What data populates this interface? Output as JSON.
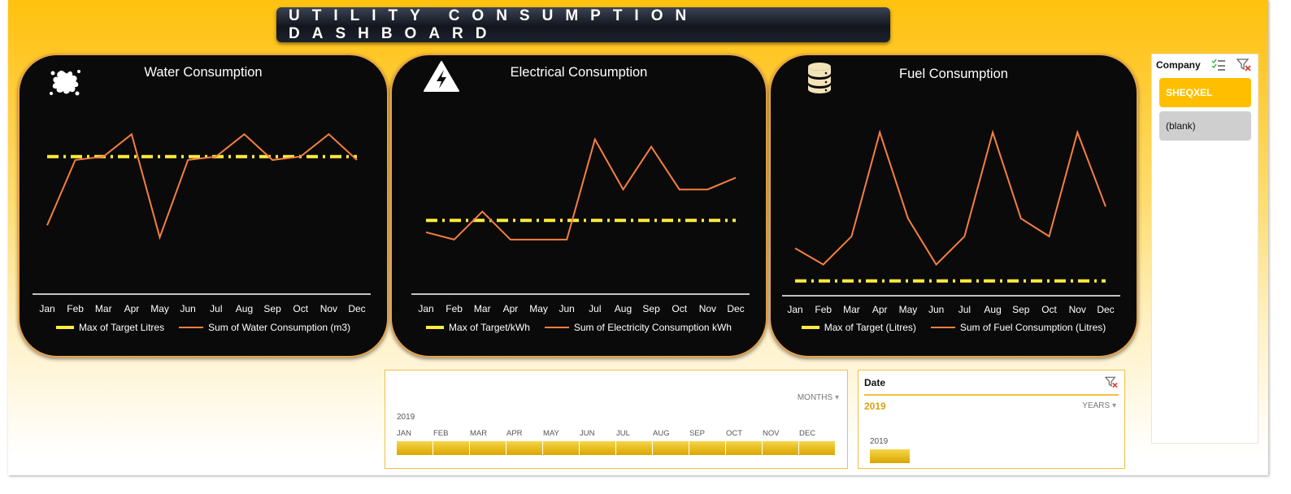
{
  "dashboard": {
    "title": "UTILITY CONSUMPTION DASHBOARD"
  },
  "months": [
    "Jan",
    "Feb",
    "Mar",
    "Apr",
    "May",
    "Jun",
    "Jul",
    "Aug",
    "Sep",
    "Oct",
    "Nov",
    "Dec"
  ],
  "colors": {
    "target": "#ffeb3b",
    "sum": "#f57f41",
    "accent": "#ffbf00"
  },
  "charts": [
    {
      "id": "water",
      "title": "Water Consumption",
      "icon": "splash-icon",
      "legend_target": "Max of Target Litres",
      "legend_sum": "Sum of Water Consumption (m3)"
    },
    {
      "id": "electrical",
      "title": "Electrical Consumption",
      "icon": "high-voltage-icon",
      "legend_target": "Max of Target/kWh",
      "legend_sum": "Sum of Electricity Consumption kWh"
    },
    {
      "id": "fuel",
      "title": "Fuel Consumption",
      "icon": "database-icon",
      "legend_target": "Max of Target (Litres)",
      "legend_sum": "Sum of Fuel Consumption (Litres)"
    }
  ],
  "chart_data": [
    {
      "type": "line",
      "title": "Water Consumption",
      "categories": [
        "Jan",
        "Feb",
        "Mar",
        "Apr",
        "May",
        "Jun",
        "Jul",
        "Aug",
        "Sep",
        "Oct",
        "Nov",
        "Dec"
      ],
      "series": [
        {
          "name": "Max of Target Litres",
          "values": [
            80,
            80,
            80,
            80,
            80,
            80,
            80,
            80,
            80,
            80,
            80,
            80
          ]
        },
        {
          "name": "Sum of Water Consumption (m3)",
          "values": [
            40,
            78,
            80,
            93,
            33,
            78,
            80,
            93,
            78,
            80,
            93,
            78
          ]
        }
      ],
      "ylim": [
        0,
        120
      ],
      "grid": false,
      "legend": "bottom"
    },
    {
      "type": "line",
      "title": "Electrical Consumption",
      "categories": [
        "Jan",
        "Feb",
        "Mar",
        "Apr",
        "May",
        "Jun",
        "Jul",
        "Aug",
        "Sep",
        "Oct",
        "Nov",
        "Dec"
      ],
      "series": [
        {
          "name": "Max of Target/kWh",
          "values": [
            50,
            50,
            50,
            50,
            50,
            50,
            50,
            50,
            50,
            50,
            50,
            50
          ]
        },
        {
          "name": "Sum of Electricity Consumption kWh",
          "values": [
            42,
            37,
            56,
            37,
            37,
            37,
            105,
            71,
            100,
            71,
            71,
            79
          ]
        }
      ],
      "ylim": [
        0,
        140
      ],
      "grid": false,
      "legend": "bottom"
    },
    {
      "type": "line",
      "title": "Fuel Consumption",
      "categories": [
        "Jan",
        "Feb",
        "Mar",
        "Apr",
        "May",
        "Jun",
        "Jul",
        "Aug",
        "Sep",
        "Oct",
        "Nov",
        "Dec"
      ],
      "series": [
        {
          "name": "Max of Target (Litres)",
          "values": [
            10,
            10,
            10,
            10,
            10,
            10,
            10,
            10,
            10,
            10,
            10,
            10
          ]
        },
        {
          "name": "Sum of Fuel Consumption (Litres)",
          "values": [
            32,
            21,
            40,
            110,
            52,
            21,
            40,
            110,
            52,
            40,
            110,
            60
          ]
        }
      ],
      "ylim": [
        0,
        140
      ],
      "grid": false,
      "legend": "bottom"
    }
  ],
  "company_slicer": {
    "header": "Company",
    "items": [
      {
        "label": "SHEQXEL",
        "selected": true
      },
      {
        "label": "(blank)",
        "selected": false
      }
    ]
  },
  "timeline": {
    "level": "MONTHS",
    "year": "2019",
    "months": [
      "JAN",
      "FEB",
      "MAR",
      "APR",
      "MAY",
      "JUN",
      "JUL",
      "AUG",
      "SEP",
      "OCT",
      "NOV",
      "DEC"
    ]
  },
  "date_slicer": {
    "title": "Date",
    "selected_year": "2019",
    "level": "YEARS",
    "year_label": "2019"
  }
}
